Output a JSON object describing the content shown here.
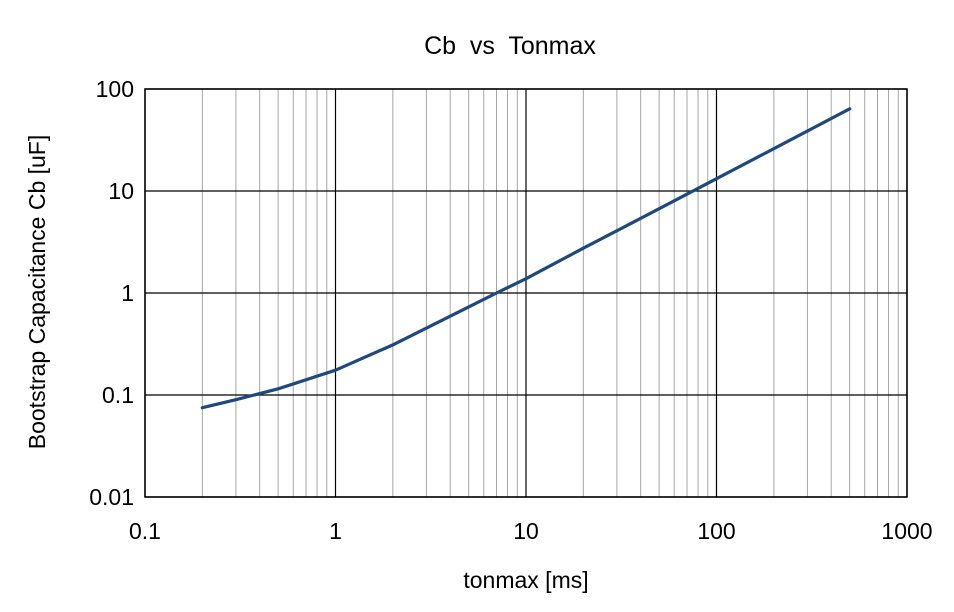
{
  "chart_data": {
    "type": "line",
    "title": "Cb  vs  Tonmax",
    "xlabel": "tonmax [ms]",
    "ylabel": "Bootstrap Capacitance Cb [uF]",
    "xscale": "log",
    "yscale": "log",
    "xlim": [
      0.1,
      1000
    ],
    "ylim": [
      0.01,
      100
    ],
    "x_ticks": [
      0.1,
      1,
      10,
      100,
      1000
    ],
    "x_tick_labels": [
      "0.1",
      "1",
      "10",
      "100",
      "1000"
    ],
    "y_ticks": [
      0.01,
      0.1,
      1,
      10,
      100
    ],
    "y_tick_labels": [
      "0.01",
      "0.1",
      "1",
      "10",
      "100"
    ],
    "grid": true,
    "legend": "none",
    "series": [
      {
        "color": "#1f497d",
        "x": [
          0.2,
          0.3,
          0.5,
          1,
          2,
          5,
          7,
          10,
          20,
          50,
          100,
          200,
          500
        ],
        "y": [
          0.075,
          0.09,
          0.115,
          0.175,
          0.31,
          0.73,
          1.0,
          1.38,
          2.75,
          6.7,
          13.2,
          26,
          64
        ]
      }
    ]
  }
}
